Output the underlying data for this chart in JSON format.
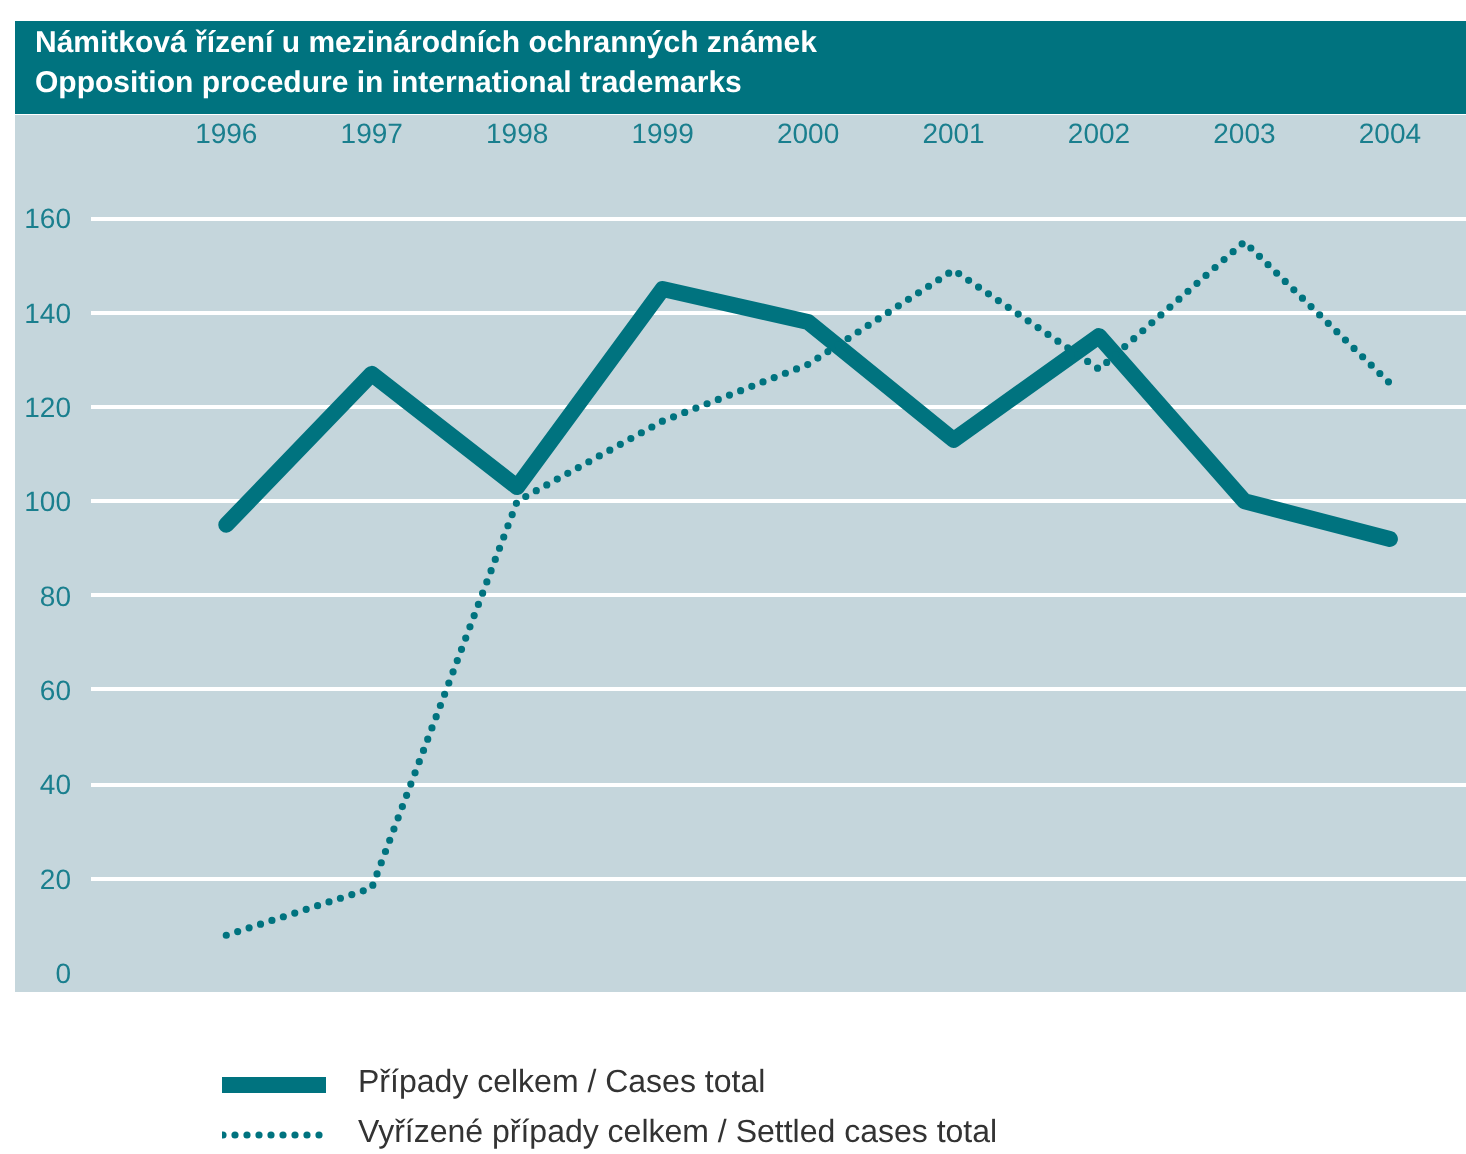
{
  "chart_data": {
    "type": "line",
    "title": "Námitková řízení u mezinárodních ochranných známek",
    "subtitle": "Opposition procedure in international trademarks",
    "categories": [
      "1996",
      "1997",
      "1998",
      "1999",
      "2000",
      "2001",
      "2002",
      "2003",
      "2004"
    ],
    "series": [
      {
        "name": "Případy celkem / Cases total",
        "color": "#00737f",
        "line_style": "solid",
        "values": [
          95,
          127,
          103,
          145,
          138,
          113,
          135,
          100,
          92
        ]
      },
      {
        "name": "Vyřízené případy celkem / Settled cases total",
        "color": "#00737f",
        "line_style": "dotted",
        "values": [
          8,
          18,
          100,
          117,
          129,
          149,
          128,
          155,
          125
        ]
      }
    ],
    "ylim": [
      0,
      170
    ],
    "yticks": [
      0,
      20,
      40,
      60,
      80,
      100,
      120,
      140,
      160
    ],
    "grid": "y",
    "legend": "bottom"
  }
}
